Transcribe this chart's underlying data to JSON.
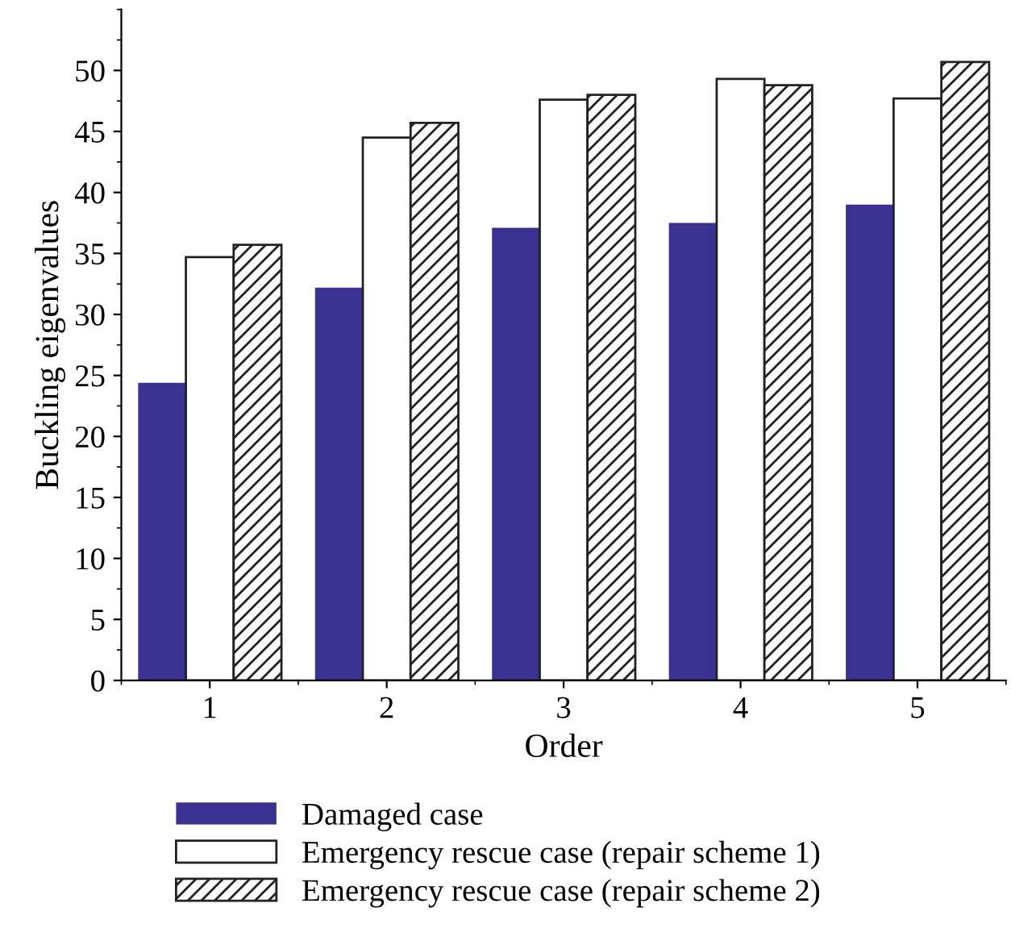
{
  "chart_data": {
    "type": "bar",
    "xlabel": "Order",
    "ylabel": "Buckling eigenvalues",
    "categories": [
      "1",
      "2",
      "3",
      "4",
      "5"
    ],
    "series": [
      {
        "name": "Damaged case",
        "color": "#3a3190",
        "values": [
          24.4,
          32.2,
          37.1,
          37.5,
          39.0
        ]
      },
      {
        "name": "Emergency rescue case (repair scheme 1)",
        "color": "#ffffff",
        "values": [
          34.7,
          44.5,
          47.6,
          49.3,
          47.7
        ]
      },
      {
        "name": "Emergency rescue case (repair scheme 2)",
        "color": "#222222",
        "values": [
          35.7,
          45.7,
          48.0,
          48.8,
          50.7
        ]
      }
    ],
    "ylim": [
      0,
      55
    ],
    "yticks": [
      0,
      5,
      10,
      15,
      20,
      25,
      30,
      35,
      40,
      45,
      50
    ],
    "grid": false,
    "legend": "bottom"
  }
}
